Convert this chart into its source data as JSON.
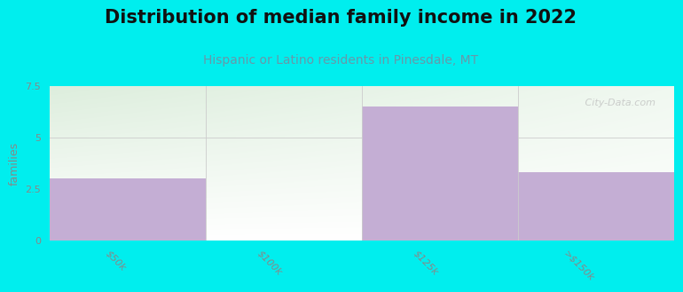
{
  "title": "Distribution of median family income in 2022",
  "subtitle": "Hispanic or Latino residents in Pinesdale, MT",
  "categories": [
    "$50k",
    "$100k",
    "$125k",
    ">$150k"
  ],
  "values": [
    3.0,
    0.0,
    6.5,
    3.3
  ],
  "bar_color": "#c4aed4",
  "background_color": "#00eeee",
  "plot_bg_top_color": "#ddeedd",
  "plot_bg_bottom_color": "#f8fff8",
  "right_bg_color": "#f4f8f0",
  "ylabel": "families",
  "ylim": [
    0,
    7.5
  ],
  "yticks": [
    0,
    2.5,
    5,
    7.5
  ],
  "title_fontsize": 15,
  "subtitle_fontsize": 10,
  "subtitle_color": "#6699aa",
  "title_color": "#111111",
  "watermark": " City-Data.com",
  "axis_color": "#cccccc",
  "tick_label_color": "#888888"
}
